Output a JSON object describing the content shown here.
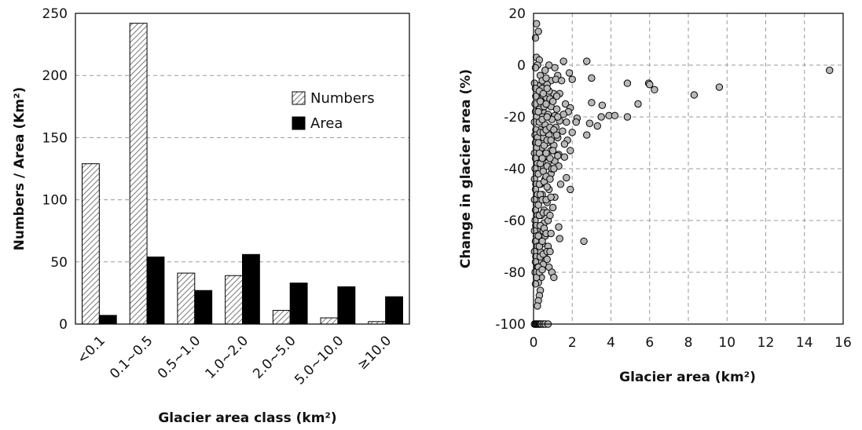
{
  "colors": {
    "numbers_fill": "hatched",
    "area_fill": "#000000",
    "point_fill": "#b8b8b8",
    "point_stroke": "#000000",
    "grid": "#9a9a9a"
  },
  "chart_data": [
    {
      "type": "bar",
      "xlabel": "Glacier area class (km²)",
      "ylabel": "Numbers / Area (Km²)",
      "ylim": [
        0,
        250
      ],
      "yticks": [
        0,
        50,
        100,
        150,
        200,
        250
      ],
      "ytick_labels": [
        "0",
        "50",
        "100",
        "150",
        "200",
        "250"
      ],
      "grid": true,
      "legend_position": "top-right",
      "categories": [
        "<0.1",
        "0.1~0.5",
        "0.5~1.0",
        "1.0~2.0",
        "2.0~5.0",
        "5.0~10.0",
        "≥10.0"
      ],
      "series": [
        {
          "name": "Numbers",
          "values": [
            129,
            242,
            41,
            39,
            11,
            5,
            2
          ]
        },
        {
          "name": "Area",
          "values": [
            7,
            54,
            27,
            56,
            33,
            30,
            22
          ]
        }
      ]
    },
    {
      "type": "scatter",
      "xlabel": "Glacier area (km²)",
      "ylabel": "Change in glacier area (%)",
      "xlim": [
        0,
        16
      ],
      "ylim": [
        -100,
        20
      ],
      "xticks": [
        0,
        2,
        4,
        6,
        8,
        10,
        12,
        14,
        16
      ],
      "xtick_labels": [
        "0",
        "2",
        "4",
        "6",
        "8",
        "10",
        "12",
        "14",
        "16"
      ],
      "yticks": [
        -100,
        -80,
        -60,
        -40,
        -20,
        0,
        20
      ],
      "ytick_labels": [
        "-100",
        "-80",
        "-60",
        "-40",
        "-20",
        "0",
        "20"
      ],
      "grid": true,
      "points": [
        [
          0.15,
          16
        ],
        [
          0.25,
          13
        ],
        [
          0.1,
          10.5
        ],
        [
          0.15,
          3
        ],
        [
          0.3,
          2
        ],
        [
          0.2,
          0
        ],
        [
          0.1,
          -1
        ],
        [
          0.8,
          0
        ],
        [
          1.1,
          -1
        ],
        [
          1.55,
          1.5
        ],
        [
          2.75,
          1.5
        ],
        [
          15.3,
          -2
        ],
        [
          0.6,
          -2
        ],
        [
          0.35,
          -4
        ],
        [
          1.25,
          -4
        ],
        [
          1.85,
          -3
        ],
        [
          2,
          -5.5
        ],
        [
          3,
          -5
        ],
        [
          0.9,
          -6
        ],
        [
          1.15,
          -5.5
        ],
        [
          1.45,
          -6
        ],
        [
          0.5,
          -7
        ],
        [
          0.7,
          -7.5
        ],
        [
          4.85,
          -7
        ],
        [
          5.95,
          -7
        ],
        [
          6.0,
          -7.5
        ],
        [
          9.6,
          -8.5
        ],
        [
          0.25,
          -8
        ],
        [
          0.45,
          -9
        ],
        [
          1.05,
          -11
        ],
        [
          6.25,
          -9.5
        ],
        [
          0.8,
          -10
        ],
        [
          1.35,
          -11
        ],
        [
          8.3,
          -11.5
        ],
        [
          0.5,
          -12
        ],
        [
          0.65,
          -13
        ],
        [
          0.4,
          -14
        ],
        [
          1.65,
          -15
        ],
        [
          3.0,
          -14.5
        ],
        [
          3.55,
          -15.5
        ],
        [
          5.4,
          -15
        ],
        [
          0.9,
          -16
        ],
        [
          1.2,
          -17
        ],
        [
          1.9,
          -16.5
        ],
        [
          0.3,
          -17
        ],
        [
          0.55,
          -18.5
        ],
        [
          1.8,
          -18
        ],
        [
          0.75,
          -19
        ],
        [
          1.1,
          -19.5
        ],
        [
          1.55,
          -19
        ],
        [
          2.25,
          -20.5
        ],
        [
          3.5,
          -20
        ],
        [
          3.9,
          -19.5
        ],
        [
          4.2,
          -19.5
        ],
        [
          4.85,
          -20
        ],
        [
          0.45,
          -20
        ],
        [
          0.95,
          -21
        ],
        [
          1.35,
          -21.5
        ],
        [
          1.7,
          -22
        ],
        [
          2.2,
          -22
        ],
        [
          2.9,
          -22.5
        ],
        [
          3.3,
          -23.5
        ],
        [
          0.6,
          -23
        ],
        [
          1.15,
          -24
        ],
        [
          0.35,
          -25
        ],
        [
          1.5,
          -25.5
        ],
        [
          2.0,
          -26
        ],
        [
          2.75,
          -27
        ],
        [
          0.8,
          -27
        ],
        [
          1.25,
          -28
        ],
        [
          1.75,
          -29
        ],
        [
          0.5,
          -28
        ],
        [
          0.7,
          -30
        ],
        [
          1.05,
          -31
        ],
        [
          1.6,
          -30.5
        ],
        [
          1.9,
          -33
        ],
        [
          0.4,
          -32
        ],
        [
          0.9,
          -33
        ],
        [
          1.3,
          -34.5
        ],
        [
          0.6,
          -35
        ],
        [
          1.6,
          -35.5
        ],
        [
          1.1,
          -37
        ],
        [
          0.75,
          -37.5
        ],
        [
          0.3,
          -36
        ],
        [
          1.3,
          -39
        ],
        [
          0.5,
          -40
        ],
        [
          0.9,
          -42
        ],
        [
          1.7,
          -43.5
        ],
        [
          1.4,
          -46
        ],
        [
          0.6,
          -44
        ],
        [
          0.8,
          -48
        ],
        [
          1.9,
          -48
        ],
        [
          0.35,
          -46
        ],
        [
          1.1,
          -51
        ],
        [
          0.45,
          -50
        ],
        [
          0.7,
          -53
        ],
        [
          1.0,
          -55
        ],
        [
          0.55,
          -56
        ],
        [
          0.4,
          -58
        ],
        [
          0.55,
          -61
        ],
        [
          0.75,
          -60
        ],
        [
          1.3,
          -62.5
        ],
        [
          0.3,
          -63
        ],
        [
          0.5,
          -64
        ],
        [
          0.6,
          -66
        ],
        [
          1.35,
          -67
        ],
        [
          2.6,
          -68
        ],
        [
          0.25,
          -67
        ],
        [
          0.45,
          -69
        ],
        [
          0.75,
          -70
        ],
        [
          0.35,
          -72
        ],
        [
          0.55,
          -74
        ],
        [
          0.7,
          -75
        ],
        [
          0.3,
          -76
        ],
        [
          0.5,
          -77
        ],
        [
          0.8,
          -78
        ],
        [
          0.95,
          -80
        ],
        [
          1.05,
          -82
        ],
        [
          0.4,
          -82
        ],
        [
          0.25,
          -84
        ],
        [
          0.1,
          -84.5
        ],
        [
          0.35,
          -87
        ],
        [
          0.3,
          -89
        ],
        [
          0.25,
          -91
        ],
        [
          0.2,
          -93
        ],
        [
          0.05,
          -100
        ],
        [
          0.1,
          -100
        ],
        [
          0.15,
          -100
        ],
        [
          0.2,
          -100
        ],
        [
          0.25,
          -100
        ],
        [
          0.3,
          -100
        ],
        [
          0.35,
          -100
        ],
        [
          0.4,
          -100
        ],
        [
          0.5,
          -100
        ],
        [
          0.6,
          -100
        ],
        [
          0.75,
          -100
        ],
        [
          0.05,
          -7
        ],
        [
          0.1,
          -9
        ],
        [
          0.12,
          -12
        ],
        [
          0.08,
          -15
        ],
        [
          0.1,
          -18
        ],
        [
          0.15,
          -20
        ],
        [
          0.05,
          -22
        ],
        [
          0.12,
          -25
        ],
        [
          0.08,
          -27
        ],
        [
          0.2,
          -28
        ],
        [
          0.1,
          -30
        ],
        [
          0.15,
          -32
        ],
        [
          0.05,
          -34
        ],
        [
          0.1,
          -36
        ],
        [
          0.2,
          -38
        ],
        [
          0.08,
          -40
        ],
        [
          0.15,
          -42
        ],
        [
          0.05,
          -44
        ],
        [
          0.12,
          -46
        ],
        [
          0.1,
          -48
        ],
        [
          0.2,
          -50
        ],
        [
          0.05,
          -52
        ],
        [
          0.15,
          -54
        ],
        [
          0.1,
          -56
        ],
        [
          0.2,
          -58
        ],
        [
          0.08,
          -60
        ],
        [
          0.12,
          -62
        ],
        [
          0.05,
          -64
        ],
        [
          0.15,
          -66
        ],
        [
          0.1,
          -68
        ],
        [
          0.2,
          -70
        ],
        [
          0.05,
          -72
        ],
        [
          0.12,
          -74
        ],
        [
          0.1,
          -76
        ],
        [
          0.2,
          -78
        ],
        [
          0.08,
          -80
        ],
        [
          0.15,
          -82
        ],
        [
          0.3,
          -10
        ],
        [
          0.35,
          -14
        ],
        [
          0.25,
          -18
        ],
        [
          0.3,
          -22
        ],
        [
          0.35,
          -26
        ],
        [
          0.25,
          -30
        ],
        [
          0.3,
          -34
        ],
        [
          0.35,
          -38
        ],
        [
          0.25,
          -42
        ],
        [
          0.3,
          -46
        ],
        [
          0.35,
          -50
        ],
        [
          0.25,
          -54
        ],
        [
          0.3,
          -58
        ],
        [
          0.35,
          -62
        ],
        [
          0.25,
          -66
        ],
        [
          0.3,
          -70
        ],
        [
          0.35,
          -74
        ],
        [
          0.25,
          -78
        ],
        [
          0.3,
          -80
        ],
        [
          0.45,
          -6
        ],
        [
          0.5,
          -11
        ],
        [
          0.55,
          -16
        ],
        [
          0.45,
          -21
        ],
        [
          0.5,
          -26
        ],
        [
          0.55,
          -31
        ],
        [
          0.45,
          -36
        ],
        [
          0.5,
          -41
        ],
        [
          0.55,
          -45
        ],
        [
          0.45,
          -52
        ],
        [
          0.5,
          -57
        ],
        [
          0.55,
          -63
        ],
        [
          0.45,
          -68
        ],
        [
          0.5,
          -73
        ],
        [
          0.45,
          -79
        ],
        [
          0.65,
          -5
        ],
        [
          0.7,
          -9
        ],
        [
          0.65,
          -15
        ],
        [
          0.7,
          -20
        ],
        [
          0.65,
          -25
        ],
        [
          0.7,
          -29
        ],
        [
          0.65,
          -34
        ],
        [
          0.7,
          -39
        ],
        [
          0.65,
          -43
        ],
        [
          0.7,
          -47
        ],
        [
          0.65,
          -52
        ],
        [
          0.7,
          -57
        ],
        [
          0.65,
          -65
        ],
        [
          0.7,
          -72
        ],
        [
          0.85,
          -13
        ],
        [
          0.85,
          -24
        ],
        [
          0.9,
          -29
        ],
        [
          0.85,
          -36
        ],
        [
          0.95,
          -40
        ],
        [
          0.85,
          -44
        ],
        [
          0.9,
          -51
        ],
        [
          0.85,
          -58
        ],
        [
          0.9,
          -65
        ],
        [
          0.85,
          -72
        ],
        [
          1.0,
          -14
        ],
        [
          1.05,
          -25
        ],
        [
          1.0,
          -33
        ],
        [
          1.05,
          -40
        ],
        [
          1.2,
          -12
        ],
        [
          1.25,
          -20
        ],
        [
          1.2,
          -27
        ],
        [
          1.25,
          -35
        ]
      ]
    }
  ]
}
